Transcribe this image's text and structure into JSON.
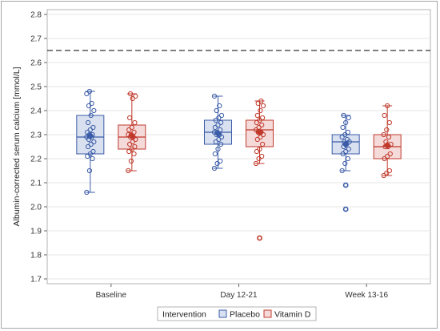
{
  "chart_data": {
    "type": "box",
    "title": "",
    "xlabel": "",
    "ylabel": "Albumin-corrected serum calcium [mmol/L]",
    "ylim": [
      1.68,
      2.82
    ],
    "yticks": [
      1.7,
      1.8,
      1.9,
      2.0,
      2.1,
      2.2,
      2.3,
      2.4,
      2.5,
      2.6,
      2.7,
      2.8
    ],
    "categories": [
      "Baseline",
      "Day 12-21",
      "Week 13-16"
    ],
    "reference_line": 2.65,
    "grid": true,
    "legend": {
      "title": "Intervention",
      "position": "bottom-center"
    },
    "series": [
      {
        "name": "Placebo",
        "color": "#3b5ca8",
        "fill": "#d9e1f0",
        "boxes": [
          {
            "min": 2.06,
            "q1": 2.22,
            "median": 2.29,
            "q3": 2.38,
            "max": 2.48,
            "mean": 2.295,
            "outliers": [],
            "points": [
              2.06,
              2.15,
              2.2,
              2.21,
              2.22,
              2.23,
              2.25,
              2.26,
              2.27,
              2.28,
              2.29,
              2.29,
              2.3,
              2.3,
              2.31,
              2.32,
              2.33,
              2.35,
              2.38,
              2.4,
              2.42,
              2.43,
              2.47,
              2.48
            ]
          },
          {
            "min": 2.16,
            "q1": 2.26,
            "median": 2.31,
            "q3": 2.36,
            "max": 2.46,
            "mean": 2.305,
            "outliers": [],
            "points": [
              2.16,
              2.18,
              2.19,
              2.22,
              2.24,
              2.26,
              2.27,
              2.28,
              2.29,
              2.3,
              2.3,
              2.31,
              2.31,
              2.32,
              2.33,
              2.34,
              2.35,
              2.36,
              2.37,
              2.38,
              2.4,
              2.42,
              2.46
            ]
          },
          {
            "min": 2.15,
            "q1": 2.22,
            "median": 2.27,
            "q3": 2.3,
            "max": 2.38,
            "mean": 2.26,
            "outliers": [
              2.09,
              1.99
            ],
            "points": [
              2.15,
              2.18,
              2.2,
              2.22,
              2.23,
              2.24,
              2.25,
              2.26,
              2.27,
              2.27,
              2.28,
              2.29,
              2.3,
              2.31,
              2.33,
              2.35,
              2.37,
              2.38
            ]
          }
        ]
      },
      {
        "name": "Vitamin D",
        "color": "#c0392b",
        "fill": "#f5dada",
        "boxes": [
          {
            "min": 2.15,
            "q1": 2.24,
            "median": 2.29,
            "q3": 2.34,
            "max": 2.47,
            "mean": 2.295,
            "outliers": [],
            "points": [
              2.15,
              2.19,
              2.22,
              2.23,
              2.24,
              2.25,
              2.26,
              2.27,
              2.28,
              2.29,
              2.29,
              2.3,
              2.3,
              2.31,
              2.32,
              2.33,
              2.35,
              2.37,
              2.45,
              2.46,
              2.47
            ]
          },
          {
            "min": 2.18,
            "q1": 2.25,
            "median": 2.32,
            "q3": 2.36,
            "max": 2.44,
            "mean": 2.31,
            "outliers": [
              1.87
            ],
            "points": [
              2.18,
              2.2,
              2.21,
              2.23,
              2.24,
              2.26,
              2.28,
              2.29,
              2.3,
              2.31,
              2.31,
              2.32,
              2.33,
              2.34,
              2.35,
              2.36,
              2.37,
              2.38,
              2.4,
              2.42,
              2.43,
              2.44
            ]
          },
          {
            "min": 2.13,
            "q1": 2.2,
            "median": 2.25,
            "q3": 2.3,
            "max": 2.42,
            "mean": 2.255,
            "outliers": [],
            "points": [
              2.13,
              2.14,
              2.15,
              2.2,
              2.21,
              2.22,
              2.25,
              2.25,
              2.26,
              2.27,
              2.29,
              2.3,
              2.32,
              2.35,
              2.38,
              2.42
            ]
          }
        ]
      }
    ]
  }
}
